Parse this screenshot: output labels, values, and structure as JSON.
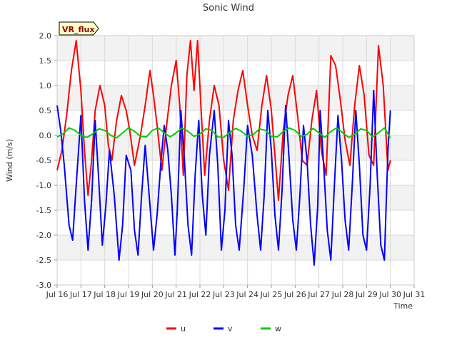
{
  "chart_data": {
    "type": "line",
    "title": "Sonic Wind",
    "badge": "VR_flux",
    "xlabel": "Time",
    "ylabel": "Wind (m/s)",
    "xlim": [
      16,
      31
    ],
    "ylim": [
      -3.0,
      2.0
    ],
    "x_ticks": [
      16,
      17,
      18,
      19,
      20,
      21,
      22,
      23,
      24,
      25,
      26,
      27,
      28,
      29,
      30,
      31
    ],
    "x_tick_labels": [
      "Jul 16",
      "Jul 17",
      "Jul 18",
      "Jul 19",
      "Jul 20",
      "Jul 21",
      "Jul 22",
      "Jul 23",
      "Jul 24",
      "Jul 25",
      "Jul 26",
      "Jul 27",
      "Jul 28",
      "Jul 29",
      "Jul 30",
      "Jul 31"
    ],
    "y_ticks": [
      -3.0,
      -2.5,
      -2.0,
      -1.5,
      -1.0,
      -0.5,
      0.0,
      0.5,
      1.0,
      1.5,
      2.0
    ],
    "y_tick_labels": [
      "-3.0",
      "-2.5",
      "-2.0",
      "-1.5",
      "-1.0",
      "-0.5",
      "0.0",
      "0.5",
      "1.0",
      "1.5",
      "2.0"
    ],
    "grid": true,
    "legend_position": "bottom-center",
    "series": [
      {
        "name": "u",
        "color": "#ff0000",
        "points": [
          [
            16.0,
            -0.7
          ],
          [
            16.2,
            -0.3
          ],
          [
            16.4,
            0.4
          ],
          [
            16.6,
            1.3
          ],
          [
            16.8,
            1.9
          ],
          [
            17.0,
            0.9
          ],
          [
            17.15,
            -0.3
          ],
          [
            17.3,
            -1.2
          ],
          [
            17.45,
            -0.5
          ],
          [
            17.6,
            0.5
          ],
          [
            17.8,
            1.0
          ],
          [
            18.0,
            0.6
          ],
          [
            18.15,
            -0.2
          ],
          [
            18.3,
            -0.5
          ],
          [
            18.5,
            0.3
          ],
          [
            18.7,
            0.8
          ],
          [
            18.9,
            0.5
          ],
          [
            19.05,
            0.1
          ],
          [
            19.25,
            -0.6
          ],
          [
            19.5,
            0.0
          ],
          [
            19.7,
            0.6
          ],
          [
            19.9,
            1.3
          ],
          [
            20.05,
            0.8
          ],
          [
            20.2,
            0.2
          ],
          [
            20.4,
            -0.7
          ],
          [
            20.6,
            0.2
          ],
          [
            20.8,
            1.0
          ],
          [
            21.0,
            1.5
          ],
          [
            21.15,
            0.6
          ],
          [
            21.3,
            -0.8
          ],
          [
            21.45,
            1.2
          ],
          [
            21.6,
            1.9
          ],
          [
            21.75,
            0.9
          ],
          [
            21.9,
            1.9
          ],
          [
            22.05,
            0.5
          ],
          [
            22.2,
            -0.8
          ],
          [
            22.4,
            0.3
          ],
          [
            22.6,
            1.0
          ],
          [
            22.8,
            0.6
          ],
          [
            23.0,
            -0.5
          ],
          [
            23.2,
            -1.1
          ],
          [
            23.4,
            0.3
          ],
          [
            23.6,
            0.9
          ],
          [
            23.8,
            1.3
          ],
          [
            24.0,
            0.6
          ],
          [
            24.2,
            0.0
          ],
          [
            24.4,
            -0.3
          ],
          [
            24.6,
            0.6
          ],
          [
            24.8,
            1.2
          ],
          [
            25.0,
            0.5
          ],
          [
            25.15,
            -0.4
          ],
          [
            25.3,
            -1.3
          ],
          [
            25.5,
            0.1
          ],
          [
            25.7,
            0.8
          ],
          [
            25.9,
            1.2
          ],
          [
            26.1,
            0.4
          ],
          [
            26.3,
            -0.5
          ],
          [
            26.5,
            -0.6
          ],
          [
            26.7,
            0.3
          ],
          [
            26.9,
            0.9
          ],
          [
            27.1,
            -0.3
          ],
          [
            27.3,
            -0.8
          ],
          [
            27.5,
            1.6
          ],
          [
            27.7,
            1.4
          ],
          [
            27.9,
            0.7
          ],
          [
            28.1,
            -0.1
          ],
          [
            28.3,
            -0.6
          ],
          [
            28.5,
            0.6
          ],
          [
            28.7,
            1.4
          ],
          [
            28.9,
            0.8
          ],
          [
            29.1,
            -0.4
          ],
          [
            29.3,
            -0.6
          ],
          [
            29.5,
            1.8
          ],
          [
            29.7,
            1.0
          ],
          [
            29.9,
            -0.7
          ],
          [
            30.0,
            -0.5
          ]
        ]
      },
      {
        "name": "v",
        "color": "#0000ff",
        "points": [
          [
            16.0,
            0.6
          ],
          [
            16.15,
            0.1
          ],
          [
            16.3,
            -0.6
          ],
          [
            16.5,
            -1.8
          ],
          [
            16.65,
            -2.1
          ],
          [
            16.8,
            -1.0
          ],
          [
            17.0,
            0.4
          ],
          [
            17.15,
            -1.3
          ],
          [
            17.3,
            -2.3
          ],
          [
            17.45,
            -1.3
          ],
          [
            17.6,
            0.3
          ],
          [
            17.75,
            -0.9
          ],
          [
            17.9,
            -2.2
          ],
          [
            18.05,
            -1.4
          ],
          [
            18.2,
            -0.3
          ],
          [
            18.4,
            -1.2
          ],
          [
            18.6,
            -2.5
          ],
          [
            18.75,
            -1.8
          ],
          [
            18.9,
            -0.4
          ],
          [
            19.1,
            -0.7
          ],
          [
            19.25,
            -1.9
          ],
          [
            19.4,
            -2.4
          ],
          [
            19.55,
            -1.2
          ],
          [
            19.7,
            -0.2
          ],
          [
            19.9,
            -1.4
          ],
          [
            20.05,
            -2.3
          ],
          [
            20.2,
            -1.6
          ],
          [
            20.35,
            -0.6
          ],
          [
            20.5,
            0.2
          ],
          [
            20.65,
            -0.3
          ],
          [
            20.8,
            -1.2
          ],
          [
            20.95,
            -2.4
          ],
          [
            21.05,
            -1.5
          ],
          [
            21.2,
            0.5
          ],
          [
            21.35,
            -0.5
          ],
          [
            21.5,
            -1.8
          ],
          [
            21.65,
            -2.4
          ],
          [
            21.8,
            -0.8
          ],
          [
            21.95,
            0.3
          ],
          [
            22.1,
            -1.2
          ],
          [
            22.25,
            -2.0
          ],
          [
            22.4,
            -0.4
          ],
          [
            22.6,
            0.5
          ],
          [
            22.75,
            -0.6
          ],
          [
            22.9,
            -2.3
          ],
          [
            23.05,
            -1.5
          ],
          [
            23.2,
            0.3
          ],
          [
            23.35,
            -0.4
          ],
          [
            23.5,
            -1.8
          ],
          [
            23.65,
            -2.3
          ],
          [
            23.85,
            -1.0
          ],
          [
            24.0,
            0.2
          ],
          [
            24.2,
            -0.4
          ],
          [
            24.4,
            -1.6
          ],
          [
            24.55,
            -2.3
          ],
          [
            24.7,
            -1.2
          ],
          [
            24.85,
            0.5
          ],
          [
            25.0,
            -0.3
          ],
          [
            25.15,
            -1.6
          ],
          [
            25.3,
            -2.3
          ],
          [
            25.45,
            -1.1
          ],
          [
            25.6,
            0.6
          ],
          [
            25.75,
            -0.5
          ],
          [
            25.9,
            -1.7
          ],
          [
            26.05,
            -2.3
          ],
          [
            26.2,
            -1.2
          ],
          [
            26.35,
            0.2
          ],
          [
            26.5,
            -0.5
          ],
          [
            26.65,
            -1.8
          ],
          [
            26.8,
            -2.6
          ],
          [
            26.95,
            -1.4
          ],
          [
            27.05,
            0.5
          ],
          [
            27.2,
            -0.6
          ],
          [
            27.35,
            -1.9
          ],
          [
            27.5,
            -2.5
          ],
          [
            27.65,
            -1.0
          ],
          [
            27.8,
            0.4
          ],
          [
            27.95,
            -0.5
          ],
          [
            28.1,
            -1.7
          ],
          [
            28.25,
            -2.3
          ],
          [
            28.4,
            -1.0
          ],
          [
            28.55,
            0.5
          ],
          [
            28.7,
            -0.6
          ],
          [
            28.85,
            -2.0
          ],
          [
            29.0,
            -2.3
          ],
          [
            29.15,
            -1.0
          ],
          [
            29.3,
            0.9
          ],
          [
            29.45,
            -0.8
          ],
          [
            29.6,
            -2.2
          ],
          [
            29.75,
            -2.5
          ],
          [
            29.9,
            -0.3
          ],
          [
            30.0,
            0.5
          ]
        ]
      },
      {
        "name": "w",
        "color": "#00cc00",
        "points": [
          [
            16.0,
            -0.03
          ],
          [
            16.25,
            0.03
          ],
          [
            16.5,
            0.15
          ],
          [
            16.75,
            0.1
          ],
          [
            17.0,
            0.0
          ],
          [
            17.25,
            -0.04
          ],
          [
            17.5,
            0.03
          ],
          [
            17.75,
            0.13
          ],
          [
            18.0,
            0.1
          ],
          [
            18.25,
            0.0
          ],
          [
            18.5,
            -0.05
          ],
          [
            18.75,
            0.05
          ],
          [
            19.0,
            0.15
          ],
          [
            19.25,
            0.08
          ],
          [
            19.5,
            -0.02
          ],
          [
            19.75,
            -0.03
          ],
          [
            20.0,
            0.1
          ],
          [
            20.25,
            0.15
          ],
          [
            20.5,
            0.05
          ],
          [
            20.75,
            -0.03
          ],
          [
            21.0,
            0.05
          ],
          [
            21.25,
            0.15
          ],
          [
            21.5,
            0.08
          ],
          [
            21.75,
            -0.02
          ],
          [
            22.0,
            0.03
          ],
          [
            22.25,
            0.13
          ],
          [
            22.5,
            0.1
          ],
          [
            22.75,
            -0.03
          ],
          [
            23.0,
            -0.04
          ],
          [
            23.25,
            0.06
          ],
          [
            23.5,
            0.14
          ],
          [
            23.75,
            0.08
          ],
          [
            24.0,
            -0.02
          ],
          [
            24.25,
            0.02
          ],
          [
            24.5,
            0.13
          ],
          [
            24.75,
            0.1
          ],
          [
            25.0,
            -0.02
          ],
          [
            25.25,
            -0.03
          ],
          [
            25.5,
            0.08
          ],
          [
            25.75,
            0.15
          ],
          [
            26.0,
            0.1
          ],
          [
            26.25,
            -0.02
          ],
          [
            26.5,
            0.02
          ],
          [
            26.75,
            0.14
          ],
          [
            27.0,
            0.05
          ],
          [
            27.25,
            -0.04
          ],
          [
            27.5,
            0.08
          ],
          [
            27.75,
            0.15
          ],
          [
            28.0,
            0.05
          ],
          [
            28.25,
            -0.04
          ],
          [
            28.5,
            0.02
          ],
          [
            28.75,
            0.13
          ],
          [
            29.0,
            0.1
          ],
          [
            29.25,
            -0.03
          ],
          [
            29.5,
            0.05
          ],
          [
            29.75,
            0.15
          ],
          [
            30.0,
            -0.05
          ]
        ]
      }
    ]
  },
  "colors": {
    "band": "#f2f2f2",
    "grid": "#d9d9d9",
    "axis": "#cccccc",
    "badge_fill": "#ffffcc",
    "badge_text": "#990000"
  }
}
